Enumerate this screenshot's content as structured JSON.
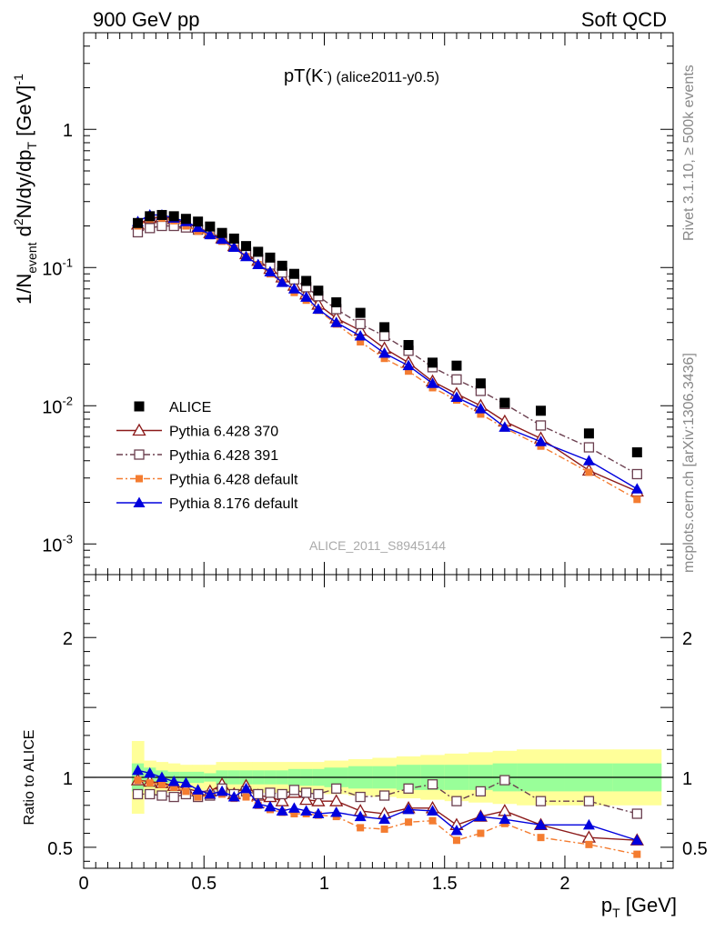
{
  "header": {
    "left": "900 GeV pp",
    "right": "Soft QCD"
  },
  "sidebar": {
    "rivet": "Rivet 3.1.10, ≥ 500k events",
    "mcplots": "mcplots.cern.ch [arXiv:1306.3436]"
  },
  "chart_data": [
    {
      "type": "scatter",
      "title": "pT(K⁻) (alice2011-y0.5)",
      "title_main": "pT(K",
      "title_sup": "-",
      "title_rest": ") (alice2011-y0.5)",
      "watermark": "ALICE_2011_S8945144",
      "ylabel": "1/N_event d²N/dy/dp_T [GeV⁻¹]",
      "ylabel_parts": {
        "a": "1/N",
        "a_sub": "event",
        "b": " d",
        "b_sup": "2",
        "c": "N/dy/dp",
        "c_sub": "T",
        "d": " [GeV]",
        "d_sup": "-1"
      },
      "yscale": "log",
      "ylim": [
        0.0006,
        5
      ],
      "xlim": [
        0,
        2.45
      ],
      "y_tick_labels": [
        {
          "base": "10",
          "exp": "-3",
          "value": 0.001
        },
        {
          "base": "10",
          "exp": "-2",
          "value": 0.01
        },
        {
          "base": "10",
          "exp": "-1",
          "value": 0.1
        },
        {
          "base": "1",
          "exp": "",
          "value": 1
        }
      ],
      "legend_position": "bottom-left",
      "x": [
        0.225,
        0.275,
        0.325,
        0.375,
        0.425,
        0.475,
        0.525,
        0.575,
        0.625,
        0.675,
        0.725,
        0.775,
        0.825,
        0.875,
        0.925,
        0.975,
        1.05,
        1.15,
        1.25,
        1.35,
        1.45,
        1.55,
        1.65,
        1.75,
        1.9,
        2.1,
        2.3
      ],
      "series": [
        {
          "name": "ALICE",
          "color": "#000000",
          "marker": "filled-square",
          "line": "none",
          "values": [
            0.21,
            0.235,
            0.24,
            0.235,
            0.225,
            0.215,
            0.198,
            0.178,
            0.162,
            0.143,
            0.13,
            0.118,
            0.103,
            0.09,
            0.08,
            0.068,
            0.056,
            0.047,
            0.037,
            0.0275,
            0.0205,
            0.0195,
            0.0145,
            0.0105,
            0.0092,
            0.0063,
            0.0046
          ]
        },
        {
          "name": "Pythia 6.428 370",
          "color": "#8b1a1a",
          "marker": "open-triangle",
          "line": "solid",
          "values": [
            0.205,
            0.228,
            0.232,
            0.225,
            0.208,
            0.195,
            0.178,
            0.163,
            0.143,
            0.125,
            0.112,
            0.098,
            0.085,
            0.074,
            0.064,
            0.054,
            0.043,
            0.035,
            0.026,
            0.0205,
            0.015,
            0.0122,
            0.01,
            0.0077,
            0.0058,
            0.0034,
            0.0024
          ]
        },
        {
          "name": "Pythia 6.428 391",
          "color": "#6b3f4f",
          "marker": "open-square",
          "line": "dashdot",
          "values": [
            0.18,
            0.193,
            0.2,
            0.2,
            0.195,
            0.188,
            0.175,
            0.163,
            0.142,
            0.128,
            0.115,
            0.105,
            0.092,
            0.082,
            0.072,
            0.062,
            0.05,
            0.039,
            0.032,
            0.025,
            0.019,
            0.0155,
            0.0128,
            0.0103,
            0.0072,
            0.005,
            0.0032
          ]
        },
        {
          "name": "Pythia 6.428 default",
          "color": "#f47c30",
          "marker": "filled-square-small",
          "line": "dashdot",
          "values": [
            0.2,
            0.225,
            0.228,
            0.218,
            0.2,
            0.183,
            0.17,
            0.155,
            0.138,
            0.12,
            0.105,
            0.09,
            0.078,
            0.066,
            0.058,
            0.049,
            0.039,
            0.029,
            0.022,
            0.0178,
            0.0135,
            0.011,
            0.0087,
            0.0069,
            0.0051,
            0.0033,
            0.0021
          ]
        },
        {
          "name": "Pythia 8.176 default",
          "color": "#0000dd",
          "marker": "filled-triangle",
          "line": "solid",
          "values": [
            0.215,
            0.24,
            0.24,
            0.228,
            0.215,
            0.195,
            0.173,
            0.16,
            0.14,
            0.12,
            0.105,
            0.093,
            0.078,
            0.07,
            0.061,
            0.05,
            0.04,
            0.032,
            0.024,
            0.0195,
            0.0145,
            0.0115,
            0.0095,
            0.007,
            0.0055,
            0.004,
            0.0025
          ]
        }
      ]
    },
    {
      "type": "scatter",
      "ylabel": "Ratio to ALICE",
      "xlabel": "p_T [GeV]",
      "xlabel_main": "p",
      "xlabel_sub": "T",
      "xlabel_rest": " [GeV]",
      "ylim": [
        0.35,
        2.45
      ],
      "xlim": [
        0,
        2.45
      ],
      "y_tick_labels": [
        {
          "label": "0.5",
          "value": 0.5
        },
        {
          "label": "1",
          "value": 1
        },
        {
          "label": "2",
          "value": 2
        }
      ],
      "x_tick_labels": [
        {
          "label": "0",
          "value": 0
        },
        {
          "label": "0.5",
          "value": 0.5
        },
        {
          "label": "1",
          "value": 1
        },
        {
          "label": "1.5",
          "value": 1.5
        },
        {
          "label": "2",
          "value": 2
        }
      ],
      "reference_line": 1,
      "bands": {
        "yellow_color": "#ffff99",
        "green_color": "#99ff99",
        "x_edges": [
          0.2,
          0.25,
          0.3,
          0.35,
          0.4,
          0.45,
          0.5,
          0.55,
          0.6,
          0.65,
          0.7,
          0.75,
          0.8,
          0.85,
          0.9,
          0.95,
          1.0,
          1.1,
          1.2,
          1.3,
          1.4,
          1.5,
          1.6,
          1.7,
          1.8,
          2.0,
          2.2,
          2.4
        ],
        "yellow_half_width": [
          0.26,
          0.12,
          0.11,
          0.1,
          0.09,
          0.09,
          0.09,
          0.11,
          0.11,
          0.11,
          0.11,
          0.11,
          0.11,
          0.11,
          0.11,
          0.11,
          0.12,
          0.13,
          0.14,
          0.15,
          0.16,
          0.17,
          0.18,
          0.19,
          0.2,
          0.2,
          0.2
        ],
        "green_half_width": [
          0.1,
          0.07,
          0.05,
          0.04,
          0.04,
          0.04,
          0.03,
          0.05,
          0.05,
          0.05,
          0.05,
          0.05,
          0.05,
          0.06,
          0.06,
          0.06,
          0.07,
          0.08,
          0.08,
          0.09,
          0.09,
          0.09,
          0.09,
          0.1,
          0.1,
          0.1,
          0.1
        ]
      },
      "series": [
        {
          "name": "Pythia 6.428 370",
          "values": [
            0.98,
            0.97,
            0.96,
            0.94,
            0.92,
            0.9,
            0.9,
            0.95,
            0.88,
            0.94,
            0.87,
            0.86,
            0.83,
            0.89,
            0.84,
            0.83,
            0.83,
            0.76,
            0.74,
            0.78,
            0.78,
            0.66,
            0.72,
            0.76,
            0.66,
            0.57,
            0.55
          ]
        },
        {
          "name": "Pythia 6.428 391",
          "values": [
            0.88,
            0.88,
            0.87,
            0.86,
            0.88,
            0.86,
            0.87,
            0.92,
            0.88,
            0.9,
            0.88,
            0.89,
            0.88,
            0.91,
            0.89,
            0.88,
            0.92,
            0.86,
            0.87,
            0.92,
            0.95,
            0.83,
            0.9,
            0.98,
            0.83,
            0.83,
            0.74
          ]
        },
        {
          "name": "Pythia 6.428 default",
          "values": [
            0.98,
            0.96,
            0.95,
            0.93,
            0.9,
            0.86,
            0.87,
            0.88,
            0.85,
            0.86,
            0.8,
            0.77,
            0.75,
            0.74,
            0.74,
            0.73,
            0.72,
            0.64,
            0.63,
            0.68,
            0.69,
            0.55,
            0.6,
            0.67,
            0.57,
            0.52,
            0.45
          ]
        },
        {
          "name": "Pythia 8.176 default",
          "values": [
            1.05,
            1.03,
            1.0,
            0.97,
            0.96,
            0.91,
            0.88,
            0.9,
            0.86,
            0.92,
            0.81,
            0.79,
            0.76,
            0.78,
            0.76,
            0.74,
            0.75,
            0.72,
            0.7,
            0.77,
            0.76,
            0.62,
            0.72,
            0.7,
            0.66,
            0.66,
            0.55
          ]
        }
      ]
    }
  ]
}
